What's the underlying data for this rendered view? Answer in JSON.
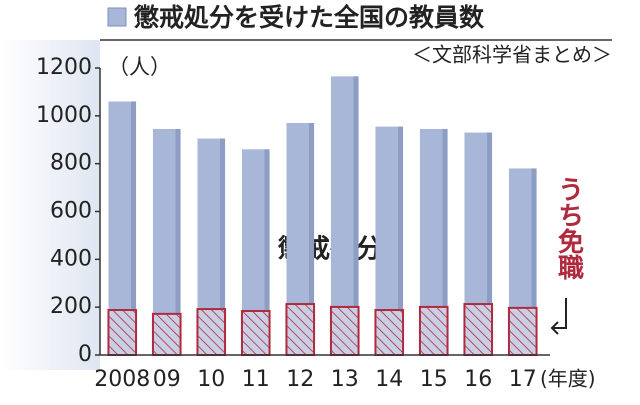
{
  "chart_data": {
    "type": "bar",
    "title": "懲戒処分を受けた全国の教員数",
    "subtitle": "＜文部科学省まとめ＞",
    "y_label": "（人）",
    "x_label": "(年度)",
    "categories": [
      "2008",
      "09",
      "10",
      "11",
      "12",
      "13",
      "14",
      "15",
      "16",
      "17"
    ],
    "series": [
      {
        "name": "懲戒処分",
        "color": "#a8b6d8",
        "values": [
          1060,
          945,
          905,
          860,
          970,
          1165,
          955,
          945,
          930,
          780
        ]
      },
      {
        "name": "うち免職",
        "color": "#b02a3e",
        "values": [
          188,
          172,
          192,
          184,
          213,
          201,
          188,
          201,
          213,
          197
        ]
      }
    ],
    "ylim": [
      0,
      1200
    ],
    "yticks": [
      0,
      200,
      400,
      600,
      800,
      1000,
      1200
    ],
    "grid": false
  }
}
